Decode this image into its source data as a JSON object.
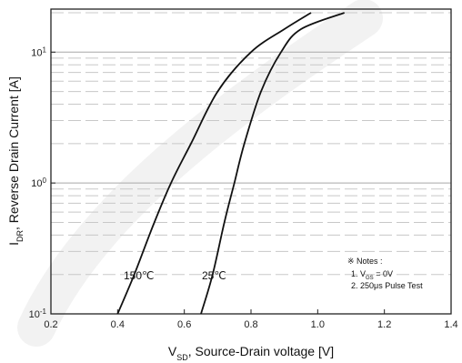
{
  "chart_data": {
    "type": "line",
    "xlabel": "V",
    "xlabel_sub": "SD",
    "xlabel_rest": ", Source-Drain voltage [V]",
    "ylabel": "I",
    "ylabel_sub": "DR",
    "ylabel_rest": ", Reverse Drain Current [A]",
    "xlim": [
      0.2,
      1.4
    ],
    "ylim": [
      0.1,
      20
    ],
    "yscale": "log",
    "x_ticks": [
      "0.2",
      "0.4",
      "0.6",
      "0.8",
      "1.0",
      "1.2",
      "1.4"
    ],
    "y_ticks": [
      {
        "base": "10",
        "exp": "-1",
        "value": 0.1
      },
      {
        "base": "10",
        "exp": "0",
        "value": 1
      },
      {
        "base": "10",
        "exp": "1",
        "value": 10
      }
    ],
    "grid": true,
    "series": [
      {
        "name": "150℃",
        "points": [
          [
            0.4,
            0.1
          ],
          [
            0.45,
            0.2
          ],
          [
            0.51,
            0.5
          ],
          [
            0.56,
            1.0
          ],
          [
            0.62,
            2.0
          ],
          [
            0.7,
            5.0
          ],
          [
            0.8,
            10.0
          ],
          [
            0.9,
            15.0
          ],
          [
            0.98,
            20.0
          ]
        ]
      },
      {
        "name": "25℃",
        "points": [
          [
            0.65,
            0.1
          ],
          [
            0.685,
            0.2
          ],
          [
            0.72,
            0.5
          ],
          [
            0.75,
            1.0
          ],
          [
            0.78,
            2.0
          ],
          [
            0.83,
            5.0
          ],
          [
            0.89,
            10.0
          ],
          [
            0.95,
            15.0
          ],
          [
            1.08,
            20.0
          ]
        ]
      }
    ],
    "notes": {
      "title": "※ Notes :",
      "line1_prefix": "1. V",
      "line1_sub": "GS",
      "line1_suffix": " = 0V",
      "line2": "2. 250μs Pulse Test"
    }
  }
}
